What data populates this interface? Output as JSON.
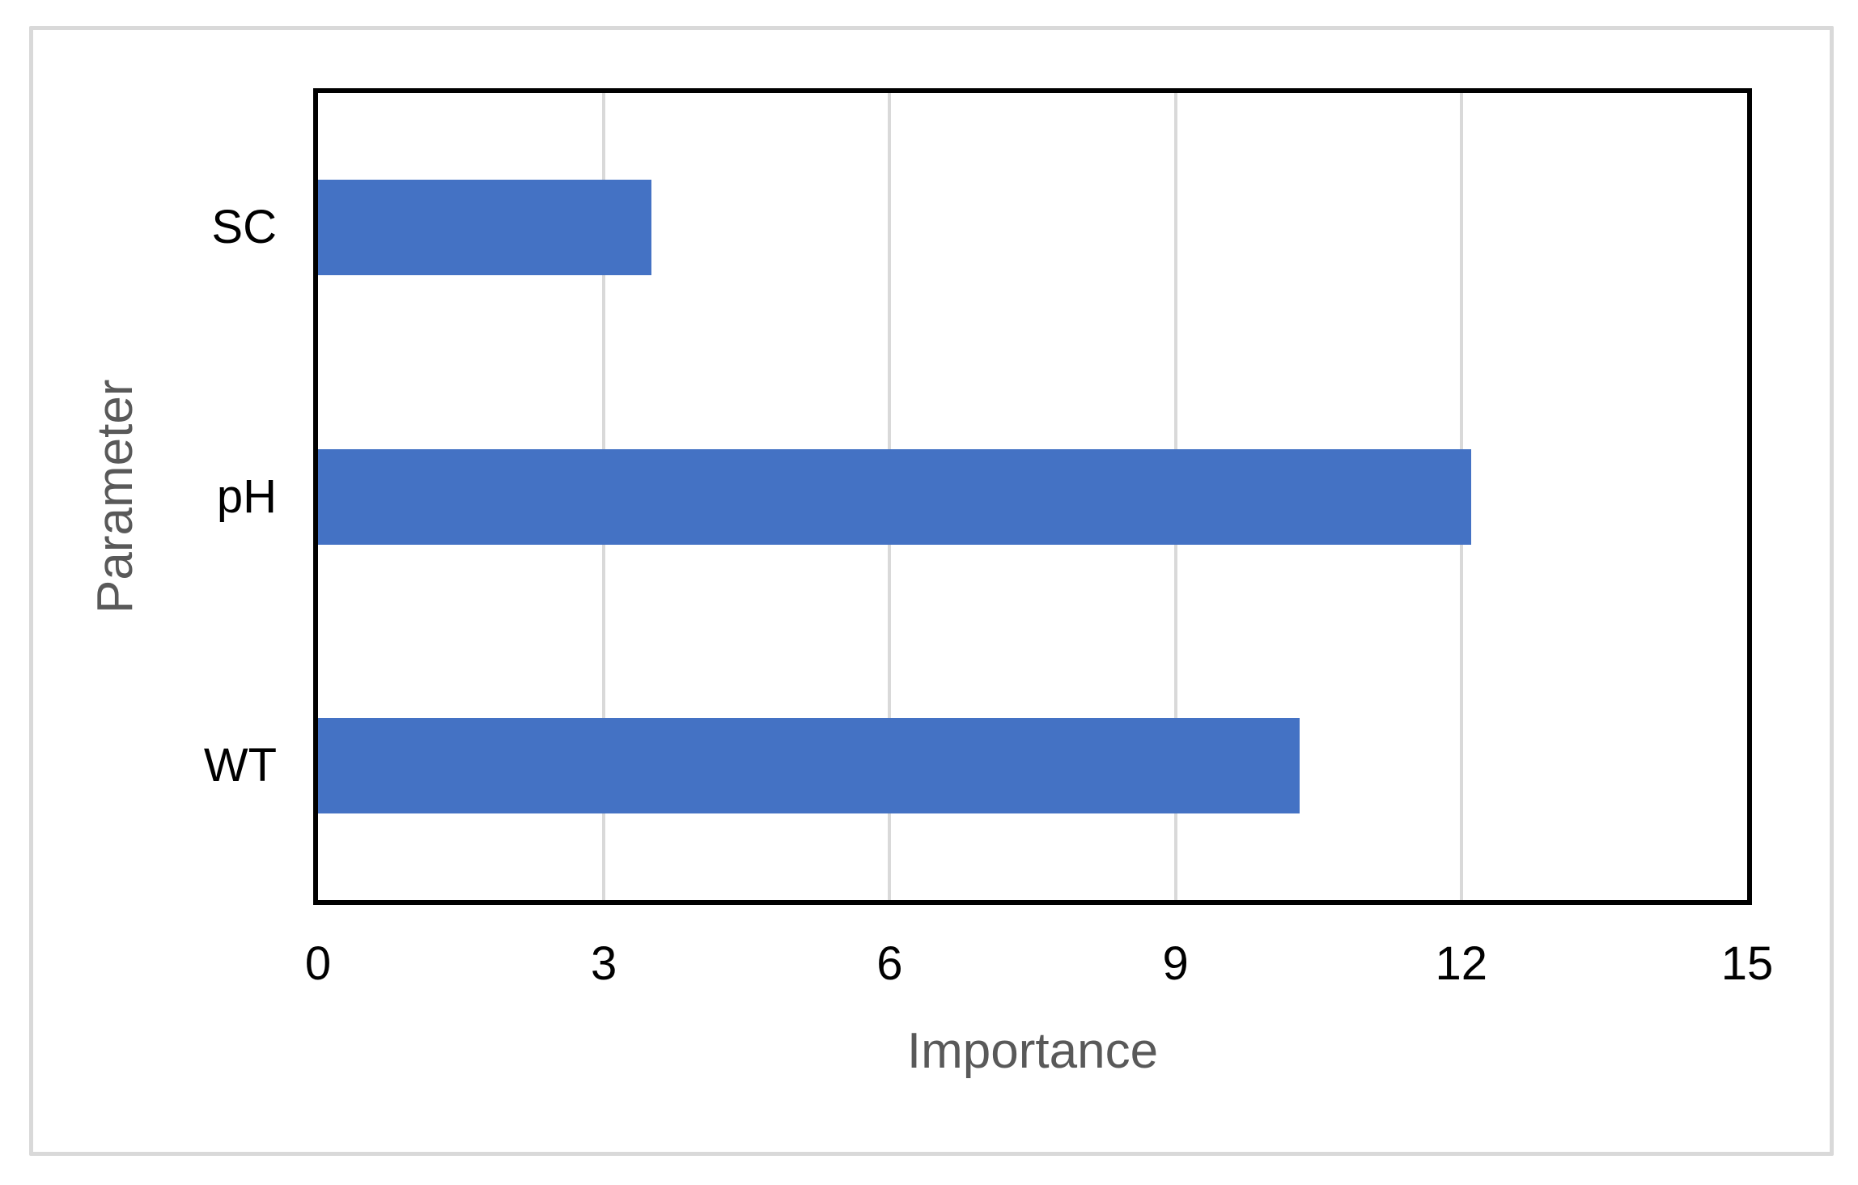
{
  "chart_data": {
    "type": "bar",
    "orientation": "horizontal",
    "title": "",
    "categories": [
      "SC",
      "pH",
      "WT"
    ],
    "values": [
      3.5,
      12.1,
      10.3
    ],
    "series": [
      {
        "name": "Importance",
        "values": [
          3.5,
          12.1,
          10.3
        ]
      }
    ],
    "xlabel": "Importance",
    "ylabel": "Parameter",
    "xlim": [
      0,
      15
    ],
    "xticks": [
      "0",
      "3",
      "6",
      "9",
      "12",
      "15"
    ],
    "grid": true,
    "legend_position": "none",
    "colors": {
      "bar": "#4472C4",
      "gridline": "#D9D9D9",
      "plot_border": "#000000",
      "tick_label": "#000000",
      "axis_title": "#595959",
      "figure_border": "#D9D9D9",
      "background": "#FFFFFF"
    }
  }
}
